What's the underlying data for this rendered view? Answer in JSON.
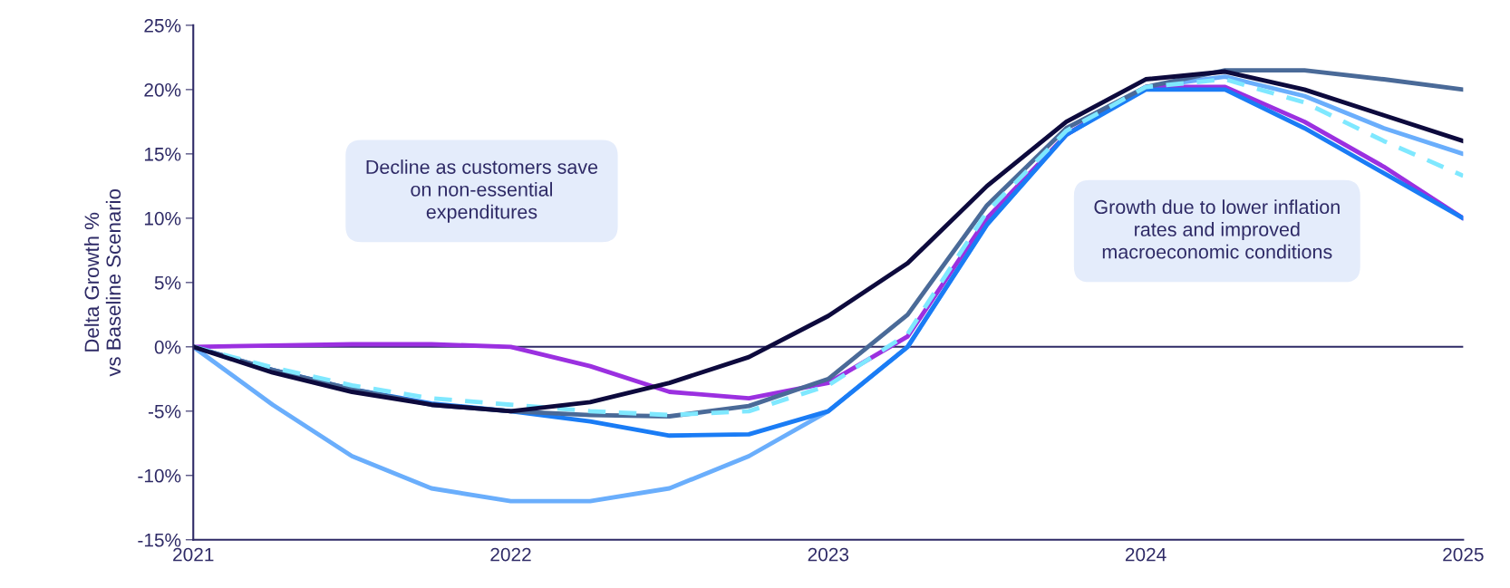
{
  "chart_data": {
    "type": "line",
    "ylabel": "Delta Growth %\nvs Baseline Scenario",
    "x": [
      2021,
      2021.25,
      2021.5,
      2021.75,
      2022,
      2022.25,
      2022.5,
      2022.75,
      2023,
      2023.25,
      2023.5,
      2023.75,
      2024,
      2024.25,
      2024.5,
      2024.75,
      2025
    ],
    "series": [
      {
        "color": "#6aaefc",
        "values": [
          0,
          -4.5,
          -8.5,
          -11.0,
          -12.0,
          -12.0,
          -11.0,
          -8.5,
          -5.0,
          0.0,
          9.5,
          16.5,
          20.2,
          21.0,
          19.5,
          17.0,
          15.0
        ]
      },
      {
        "color": "#9b30e0",
        "values": [
          0,
          0.1,
          0.2,
          0.2,
          0.0,
          -1.5,
          -3.5,
          -4.0,
          -2.8,
          0.8,
          10.0,
          16.5,
          20.2,
          20.2,
          17.5,
          14.0,
          10.0
        ]
      },
      {
        "color": "#1a7cf5",
        "values": [
          0,
          -1.8,
          -3.3,
          -4.4,
          -5.0,
          -5.8,
          -6.9,
          -6.8,
          -5.0,
          0.0,
          9.5,
          16.5,
          20.0,
          20.0,
          17.0,
          13.5,
          10.0
        ]
      },
      {
        "color": "#4a6a98",
        "values": [
          0,
          -1.8,
          -3.3,
          -4.5,
          -5.0,
          -5.3,
          -5.4,
          -4.6,
          -2.5,
          2.5,
          11.0,
          17.0,
          20.2,
          21.5,
          21.5,
          20.8,
          20.0
        ]
      },
      {
        "color": "#7fe8ff",
        "line_style": "dashed",
        "values": [
          0,
          -1.6,
          -3.0,
          -4.0,
          -4.5,
          -5.0,
          -5.3,
          -5.0,
          -3.0,
          1.0,
          10.5,
          16.8,
          20.2,
          20.8,
          19.0,
          16.0,
          13.3
        ]
      },
      {
        "color": "#0d0a3d",
        "values": [
          0,
          -2.0,
          -3.5,
          -4.5,
          -5.0,
          -4.3,
          -2.8,
          -0.8,
          2.4,
          6.5,
          12.5,
          17.5,
          20.8,
          21.4,
          20.0,
          18.0,
          16.0
        ]
      }
    ],
    "xlim": [
      2021,
      2025
    ],
    "xticks": [
      2021,
      2022,
      2023,
      2024,
      2025
    ],
    "ylim": [
      -15,
      25
    ],
    "yticks": [
      {
        "value": -15,
        "label": "-15%"
      },
      {
        "value": -10,
        "label": "-10%"
      },
      {
        "value": -5,
        "label": "-5%"
      },
      {
        "value": 0,
        "label": "0%"
      },
      {
        "value": 5,
        "label": "5%"
      },
      {
        "value": 10,
        "label": "10%"
      },
      {
        "value": 15,
        "label": "15%"
      },
      {
        "value": 20,
        "label": "20%"
      },
      {
        "value": 25,
        "label": "25%"
      }
    ],
    "ref_lines": [
      {
        "axis": "y",
        "value": 0,
        "color": "#2e2a66"
      }
    ],
    "grid": false,
    "legend": false,
    "marker": "none",
    "line_style": "solid",
    "annotations": [
      "Decline as customers save\non non-essential\nexpenditures",
      "Growth due to lower inflation\nrates and improved\nmacroeconomic conditions"
    ]
  }
}
